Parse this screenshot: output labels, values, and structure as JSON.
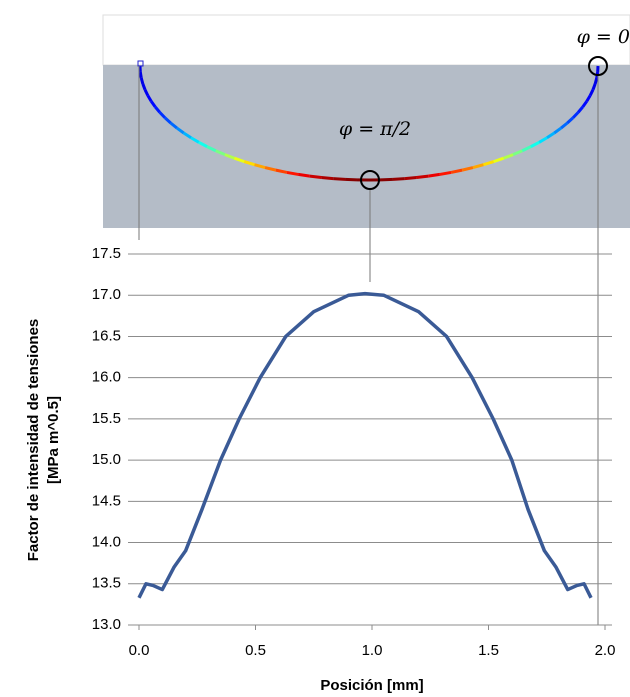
{
  "chart_data": {
    "type": "line",
    "xlabel": "Posición [mm]",
    "ylabel": [
      "Factor de intensidad de tensiones",
      "[MPa m^0.5]"
    ],
    "annotations": [
      "φ = 0",
      "φ = π/2"
    ],
    "x": [
      0,
      0.03,
      0.06,
      0.1,
      0.15,
      0.2,
      0.27,
      0.35,
      0.43,
      0.52,
      0.63,
      0.75,
      0.9,
      0.97,
      1.05,
      1.2,
      1.32,
      1.43,
      1.52,
      1.6,
      1.67,
      1.74,
      1.79,
      1.84,
      1.88,
      1.91,
      1.94
    ],
    "series": [
      {
        "color": "#3a5a96",
        "values": [
          13.33,
          13.5,
          13.48,
          13.43,
          13.7,
          13.9,
          14.4,
          15.0,
          15.5,
          16.0,
          16.5,
          16.8,
          17.0,
          17.02,
          17.0,
          16.8,
          16.5,
          16.0,
          15.5,
          15.0,
          14.4,
          13.9,
          13.7,
          13.43,
          13.48,
          13.5,
          13.33
        ]
      }
    ],
    "xlim": [
      0,
      2
    ],
    "xticks": [
      {
        "value": 0,
        "label": "0.0"
      },
      0.5,
      {
        "value": 1,
        "label": "1.0"
      },
      1.5,
      {
        "value": 2,
        "label": "2.0"
      }
    ],
    "ylim": [
      13,
      17.5
    ],
    "yticks": [
      {
        "value": 13,
        "label": "13.0"
      },
      13.5,
      {
        "value": 14,
        "label": "14.0"
      },
      14.5,
      {
        "value": 15,
        "label": "15.0"
      },
      15.5,
      {
        "value": 16,
        "label": "16.0"
      },
      16.5,
      {
        "value": 17,
        "label": "17.0"
      },
      17.5
    ],
    "grid": true
  }
}
